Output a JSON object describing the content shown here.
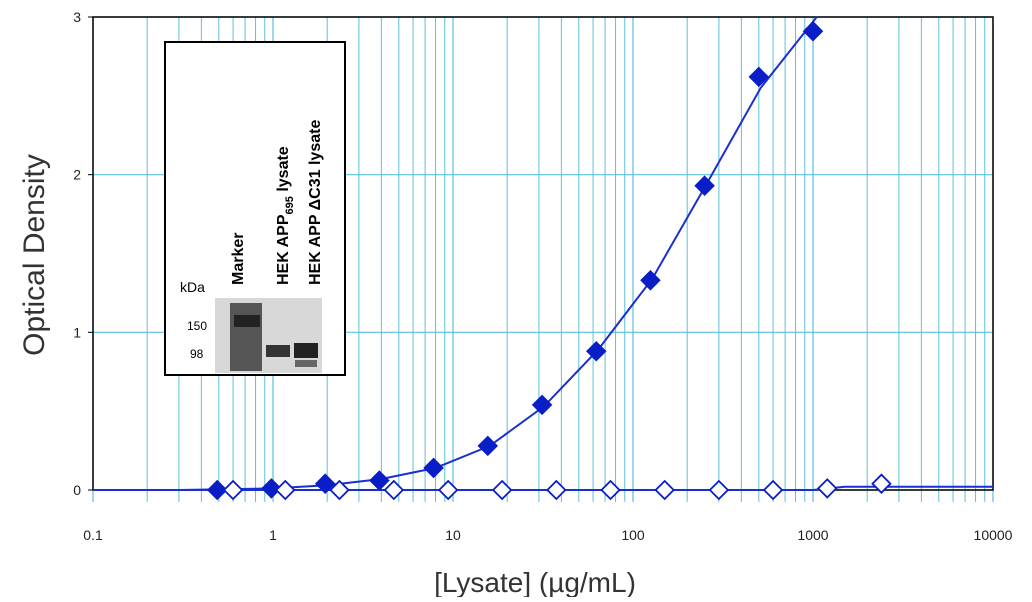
{
  "chart_data": {
    "type": "scatter",
    "x_label": "[Lysate] (µg/mL)",
    "y_label": "Optical Density",
    "xscale": "log",
    "xlim": [
      0.1,
      10000
    ],
    "xticks": [
      0.1,
      1,
      10,
      100,
      1000,
      10000
    ],
    "ylim": [
      0,
      3
    ],
    "yticks": [
      0,
      1,
      2,
      3
    ],
    "grid": true,
    "series": [
      {
        "marker": "filled-diamond",
        "color": "#0a1ec8",
        "x": [
          0.49,
          0.98,
          1.95,
          3.9,
          7.8,
          15.6,
          31.25,
          62.5,
          125,
          250,
          500,
          1000
        ],
        "values": [
          0.0,
          0.01,
          0.04,
          0.06,
          0.14,
          0.28,
          0.54,
          0.88,
          1.33,
          1.93,
          2.62,
          2.91
        ]
      },
      {
        "marker": "open-diamond",
        "color": "#0a1ec8",
        "x": [
          0.6,
          1.17,
          2.34,
          4.69,
          9.4,
          18.75,
          37.5,
          75,
          150,
          300,
          600,
          1200,
          2400
        ],
        "values": [
          0,
          0,
          0,
          0,
          0,
          0,
          0,
          0,
          0,
          0,
          0,
          0.01,
          0.04
        ]
      },
      {
        "marker": "line",
        "color": "#1a2fd0",
        "x": [
          0.1,
          0.3,
          1,
          2,
          4,
          8,
          16,
          32,
          64,
          128,
          256,
          512,
          1000,
          1050
        ],
        "values": [
          0,
          0,
          0.01,
          0.03,
          0.07,
          0.14,
          0.28,
          0.53,
          0.89,
          1.34,
          1.94,
          2.55,
          2.97,
          3.0
        ]
      },
      {
        "marker": "line",
        "color": "#1a2fd0",
        "x": [
          0.1,
          1000,
          1500,
          10000
        ],
        "values": [
          0,
          0,
          0.02,
          0.02
        ]
      }
    ],
    "inset": {
      "unit": "kDa",
      "markers": [
        "150",
        "98"
      ],
      "lanes": [
        {
          "text": "Marker"
        },
        {
          "text": "HEK APP",
          "sub": "695",
          "after": " lysate"
        },
        {
          "text": "HEK APP ΔC31 lysate"
        }
      ]
    }
  }
}
